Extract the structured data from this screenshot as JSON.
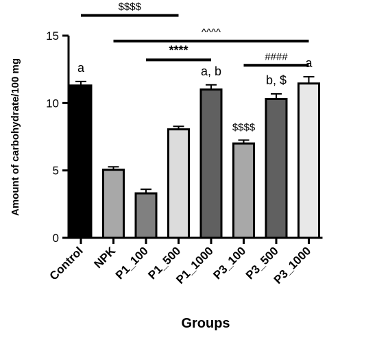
{
  "chart_data": {
    "type": "bar",
    "title": "",
    "xlabel": "Groups",
    "ylabel": "Amount of carbohydrate/100 mg",
    "ylim": [
      0,
      15
    ],
    "yticks": [
      0,
      5,
      10,
      15
    ],
    "grid": false,
    "categories": [
      "Control",
      "NPK",
      "P1_100",
      "P1_500",
      "P1_1000",
      "P3_100",
      "P3_500",
      "P3_1000"
    ],
    "values": [
      11.3,
      5.05,
      3.3,
      8.05,
      11.0,
      7.0,
      10.3,
      11.45
    ],
    "errors": [
      0.3,
      0.22,
      0.3,
      0.22,
      0.35,
      0.25,
      0.38,
      0.5
    ],
    "colors": [
      "#000000",
      "#a8a8a8",
      "#808080",
      "#dcdcdc",
      "#606060",
      "#a8a8a8",
      "#606060",
      "#e8e8e8"
    ],
    "data_labels": [
      {
        "category": "Control",
        "text": "a"
      },
      {
        "category": "P1_1000",
        "text": "a, b"
      },
      {
        "category": "P3_100",
        "text": "$$$$"
      },
      {
        "category": "P3_500",
        "text": "b, $"
      },
      {
        "category": "P3_1000",
        "text": "a"
      }
    ],
    "significance_lines": [
      {
        "from": "Control",
        "to": "P1_500",
        "y": 16.5,
        "label": "$$$$"
      },
      {
        "from": "NPK",
        "to": "P3_1000",
        "y": 14.6,
        "label": "^^^^"
      },
      {
        "from": "P1_100",
        "to": "P1_1000",
        "y": 13.2,
        "label": "****"
      },
      {
        "from": "P3_100",
        "to": "P3_1000",
        "y": 12.8,
        "label": "####"
      }
    ]
  }
}
